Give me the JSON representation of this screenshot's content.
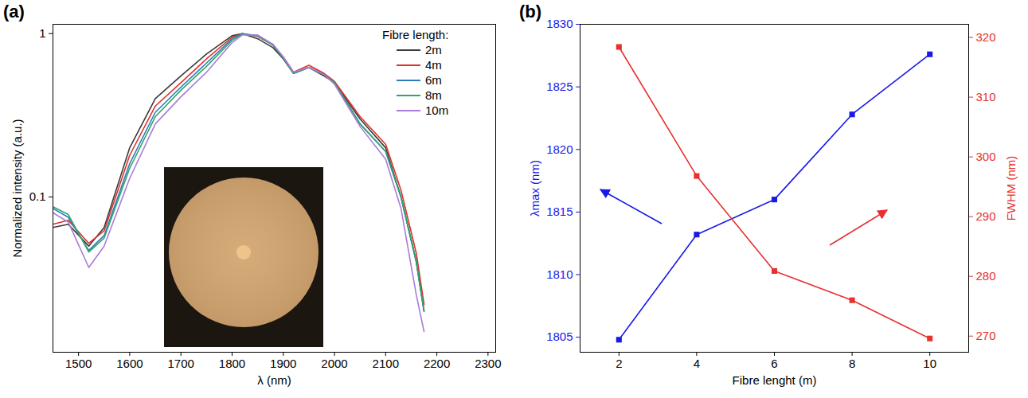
{
  "chart_data": [
    {
      "type": "line",
      "panel_label": "(a)",
      "x_label": "λ (nm)",
      "y_label": "Normalized intensity (a.u.)",
      "log": "y",
      "legend": "top-right",
      "legend_title": "Fibre length:",
      "x": [
        1450,
        1480,
        1520,
        1550,
        1600,
        1650,
        1700,
        1750,
        1800,
        1820,
        1850,
        1880,
        1900,
        1920,
        1950,
        1980,
        2000,
        2050,
        2100,
        2130,
        2160,
        2175
      ],
      "xlim": [
        1450,
        2315
      ],
      "xticks": [
        1500,
        1600,
        1700,
        1800,
        1900,
        2000,
        2100,
        2200,
        2300
      ],
      "ylim": [
        0.0112,
        1.14
      ],
      "yticks": [
        0.1,
        1
      ],
      "series": [
        {
          "name": "2m",
          "color": "#3a3a3a",
          "values": [
            0.065,
            0.068,
            0.05,
            0.065,
            0.2,
            0.4,
            0.55,
            0.75,
            0.97,
            1.0,
            0.93,
            0.82,
            0.7,
            0.57,
            0.62,
            0.55,
            0.5,
            0.3,
            0.2,
            0.1,
            0.04,
            0.02
          ]
        },
        {
          "name": "4m",
          "color": "#e0302b",
          "values": [
            0.068,
            0.072,
            0.052,
            0.062,
            0.18,
            0.36,
            0.5,
            0.7,
            0.95,
            1.0,
            0.96,
            0.85,
            0.72,
            0.58,
            0.64,
            0.57,
            0.51,
            0.31,
            0.21,
            0.11,
            0.045,
            0.022
          ]
        },
        {
          "name": "6m",
          "color": "#2b7bba",
          "values": [
            0.085,
            0.075,
            0.047,
            0.058,
            0.16,
            0.33,
            0.47,
            0.66,
            0.93,
            1.0,
            0.97,
            0.85,
            0.71,
            0.57,
            0.62,
            0.56,
            0.5,
            0.28,
            0.19,
            0.1,
            0.04,
            0.02
          ]
        },
        {
          "name": "8m",
          "color": "#2ea66b",
          "values": [
            0.087,
            0.078,
            0.046,
            0.056,
            0.15,
            0.31,
            0.45,
            0.63,
            0.91,
            0.99,
            0.97,
            0.85,
            0.71,
            0.57,
            0.62,
            0.56,
            0.5,
            0.28,
            0.19,
            0.1,
            0.04,
            0.02
          ]
        },
        {
          "name": "10m",
          "color": "#a97bdb",
          "values": [
            0.08,
            0.07,
            0.037,
            0.05,
            0.13,
            0.28,
            0.41,
            0.58,
            0.88,
            0.98,
            0.98,
            0.86,
            0.72,
            0.58,
            0.62,
            0.56,
            0.49,
            0.27,
            0.17,
            0.085,
            0.025,
            0.015
          ]
        }
      ]
    },
    {
      "type": "line",
      "marker": "square",
      "panel_label": "(b)",
      "x_label": "Fibre lenght (m)",
      "y_label": "λmax (nm)",
      "y2_label": "FWHM (nm)",
      "x": [
        2,
        4,
        6,
        8,
        10
      ],
      "xlim": [
        1,
        11
      ],
      "xticks": [
        2,
        4,
        6,
        8,
        10
      ],
      "ylim": [
        1803.8,
        1830
      ],
      "yticks": [
        1805,
        1810,
        1815,
        1820,
        1825,
        1830
      ],
      "y2lim": [
        267.3,
        322.2
      ],
      "y2ticks": [
        270,
        280,
        290,
        300,
        310,
        320
      ],
      "series": [
        {
          "name": "λmax",
          "color": "#1a1ae6",
          "values": [
            1804.8,
            1813.2,
            1816.0,
            1822.8,
            1827.6
          ]
        },
        {
          "name": "FWHM",
          "color": "#e8312f",
          "axis": "y2",
          "values": [
            318.4,
            296.8,
            280.9,
            276.0,
            269.6
          ]
        }
      ]
    }
  ]
}
